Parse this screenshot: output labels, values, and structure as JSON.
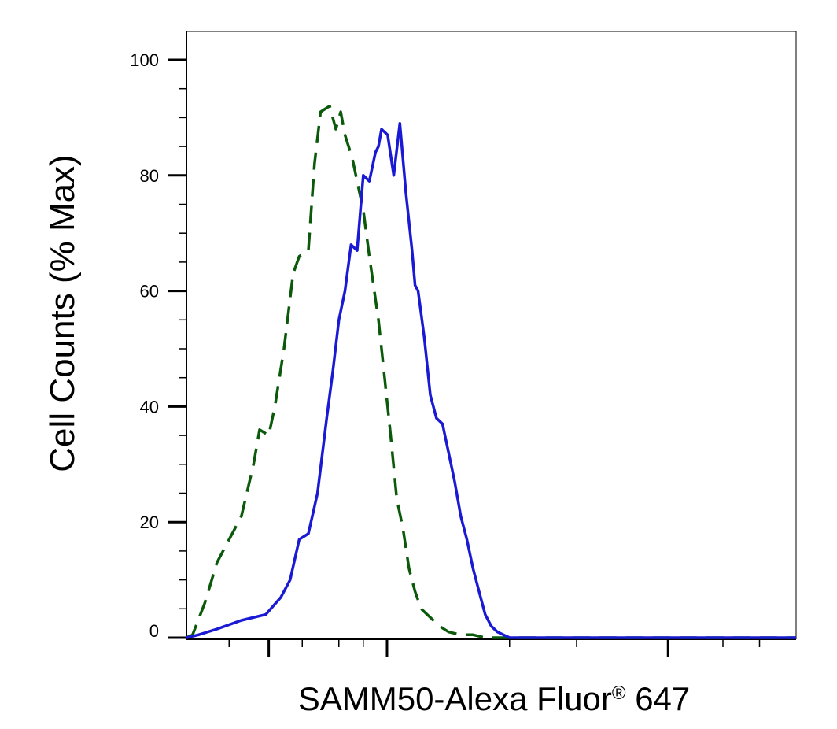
{
  "chart_data": {
    "type": "line",
    "title": "",
    "xlabel": "SAMM50-Alexa Fluor",
    "xlabel_superscript": "®",
    "xlabel_suffix": " 647",
    "ylabel": "Cell Counts (% Max)",
    "x_scale": "log",
    "ylim": [
      0,
      100
    ],
    "yticks": [
      0,
      20,
      40,
      60,
      80,
      100
    ],
    "ytick_labels": [
      "0",
      "20",
      "40",
      "60",
      "80",
      "100"
    ],
    "grid": false,
    "series": [
      {
        "style": "dashed",
        "color": "#0b5a0b",
        "x": [
          0.0,
          0.01,
          0.03,
          0.05,
          0.07,
          0.09,
          0.11,
          0.12,
          0.135,
          0.145,
          0.16,
          0.175,
          0.185,
          0.2,
          0.21,
          0.22,
          0.235,
          0.245,
          0.253,
          0.26,
          0.272,
          0.282,
          0.29,
          0.3,
          0.315,
          0.325,
          0.335,
          0.345,
          0.355,
          0.365,
          0.375,
          0.385,
          0.395,
          0.405,
          0.415,
          0.43,
          0.45,
          0.47,
          0.49,
          0.52,
          0.56,
          0.6,
          0.65,
          0.72,
          0.8,
          1.0
        ],
        "values": [
          0,
          0.5,
          6,
          13,
          17,
          21,
          30,
          36,
          35,
          40,
          50,
          63,
          66,
          67,
          82,
          91,
          92,
          88,
          91,
          87,
          83,
          78,
          74,
          66,
          55,
          45,
          35,
          24,
          19,
          12,
          8,
          5,
          4,
          3,
          2,
          1,
          0.5,
          0.5,
          0,
          0,
          0,
          0,
          0,
          0,
          0,
          0
        ]
      },
      {
        "style": "solid",
        "color": "#1a1ad4",
        "x": [
          0.0,
          0.02,
          0.05,
          0.09,
          0.13,
          0.155,
          0.17,
          0.185,
          0.2,
          0.215,
          0.23,
          0.24,
          0.25,
          0.26,
          0.27,
          0.28,
          0.29,
          0.3,
          0.31,
          0.315,
          0.32,
          0.33,
          0.34,
          0.35,
          0.36,
          0.37,
          0.375,
          0.38,
          0.39,
          0.4,
          0.41,
          0.42,
          0.43,
          0.44,
          0.45,
          0.46,
          0.47,
          0.48,
          0.49,
          0.5,
          0.51,
          0.52,
          0.53,
          0.54,
          0.55,
          0.565,
          0.58,
          0.6,
          0.62,
          0.65,
          0.7,
          0.8,
          0.9,
          1.0
        ],
        "values": [
          0,
          0.5,
          1.5,
          3,
          4,
          7,
          10,
          17,
          18,
          25,
          38,
          46,
          55,
          60,
          68,
          67,
          80,
          79,
          84,
          85,
          88,
          87,
          80,
          89,
          77,
          67,
          61,
          60,
          52,
          42,
          38,
          37,
          32,
          27,
          21,
          17,
          12,
          8,
          4,
          2,
          1,
          0.5,
          0,
          0,
          0,
          0,
          0,
          0,
          0,
          0,
          0,
          0,
          0,
          0
        ]
      }
    ]
  }
}
